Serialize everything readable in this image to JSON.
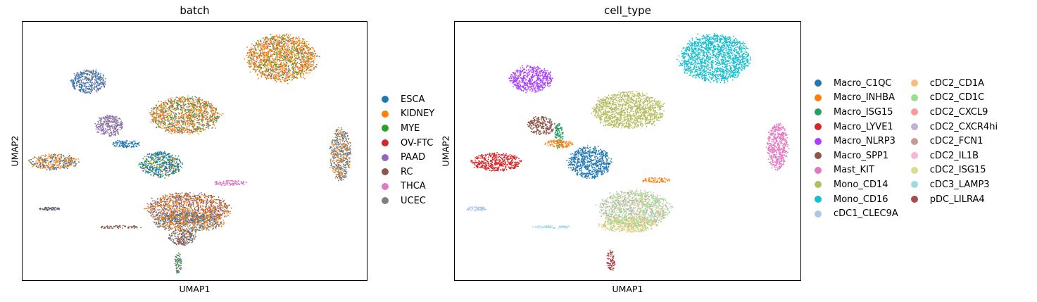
{
  "chart_data": [
    {
      "type": "scatter",
      "title": "batch",
      "xlabel": "UMAP1",
      "ylabel": "UMAP2",
      "grid": false,
      "legend_placement": "right",
      "series": [
        {
          "name": "ESCA",
          "color": "#1f77b4"
        },
        {
          "name": "KIDNEY",
          "color": "#ff7f0e"
        },
        {
          "name": "MYE",
          "color": "#2ca02c"
        },
        {
          "name": "OV-FTC",
          "color": "#d62728"
        },
        {
          "name": "PAAD",
          "color": "#9467bd"
        },
        {
          "name": "RC",
          "color": "#8c564b"
        },
        {
          "name": "THCA",
          "color": "#e377c2"
        },
        {
          "name": "UCEC",
          "color": "#7f7f7f"
        }
      ],
      "clusters": [
        {
          "x": 0.75,
          "y": 0.86,
          "rx": 0.1,
          "ry": 0.09,
          "mix": [
            [
              1,
              0.7
            ],
            [
              2,
              0.2
            ],
            [
              4,
              0.1
            ]
          ]
        },
        {
          "x": 0.19,
          "y": 0.77,
          "rx": 0.05,
          "ry": 0.045,
          "mix": [
            [
              0,
              0.5
            ],
            [
              7,
              0.3
            ],
            [
              4,
              0.2
            ]
          ]
        },
        {
          "x": 0.47,
          "y": 0.64,
          "rx": 0.1,
          "ry": 0.07,
          "mix": [
            [
              1,
              0.5
            ],
            [
              2,
              0.2
            ],
            [
              7,
              0.3
            ]
          ]
        },
        {
          "x": 0.25,
          "y": 0.6,
          "rx": 0.04,
          "ry": 0.04,
          "mix": [
            [
              4,
              0.6
            ],
            [
              7,
              0.4
            ]
          ]
        },
        {
          "x": 0.3,
          "y": 0.53,
          "rx": 0.04,
          "ry": 0.015,
          "mix": [
            [
              0,
              1
            ]
          ]
        },
        {
          "x": 0.09,
          "y": 0.46,
          "rx": 0.07,
          "ry": 0.03,
          "mix": [
            [
              1,
              0.6
            ],
            [
              0,
              0.4
            ]
          ]
        },
        {
          "x": 0.4,
          "y": 0.45,
          "rx": 0.06,
          "ry": 0.05,
          "mix": [
            [
              0,
              0.6
            ],
            [
              2,
              0.3
            ],
            [
              1,
              0.1
            ]
          ]
        },
        {
          "x": 0.92,
          "y": 0.49,
          "rx": 0.03,
          "ry": 0.1,
          "mix": [
            [
              7,
              0.5
            ],
            [
              1,
              0.3
            ],
            [
              0,
              0.2
            ]
          ]
        },
        {
          "x": 0.6,
          "y": 0.38,
          "rx": 0.05,
          "ry": 0.01,
          "mix": [
            [
              6,
              1
            ]
          ]
        },
        {
          "x": 0.48,
          "y": 0.28,
          "rx": 0.12,
          "ry": 0.06,
          "mix": [
            [
              1,
              0.4
            ],
            [
              5,
              0.3
            ],
            [
              7,
              0.2
            ],
            [
              4,
              0.1
            ]
          ]
        },
        {
          "x": 0.48,
          "y": 0.23,
          "rx": 0.1,
          "ry": 0.04,
          "mix": [
            [
              1,
              0.4
            ],
            [
              7,
              0.3
            ],
            [
              0,
              0.3
            ]
          ]
        },
        {
          "x": 0.08,
          "y": 0.28,
          "rx": 0.03,
          "ry": 0.006,
          "mix": [
            [
              5,
              0.6
            ],
            [
              0,
              0.4
            ]
          ]
        },
        {
          "x": 0.28,
          "y": 0.21,
          "rx": 0.06,
          "ry": 0.006,
          "mix": [
            [
              5,
              1
            ]
          ]
        },
        {
          "x": 0.46,
          "y": 0.17,
          "rx": 0.04,
          "ry": 0.03,
          "mix": [
            [
              5,
              0.5
            ],
            [
              7,
              0.5
            ]
          ]
        },
        {
          "x": 0.45,
          "y": 0.07,
          "rx": 0.01,
          "ry": 0.04,
          "mix": [
            [
              2,
              0.5
            ],
            [
              4,
              0.5
            ]
          ]
        }
      ]
    },
    {
      "type": "scatter",
      "title": "cell_type",
      "xlabel": "UMAP1",
      "ylabel": "UMAP2",
      "grid": false,
      "legend_placement": "right",
      "series": [
        {
          "name": "Macro_C1QC",
          "color": "#1f77b4"
        },
        {
          "name": "Macro_INHBA",
          "color": "#ff7f0e"
        },
        {
          "name": "Macro_ISG15",
          "color": "#279e68"
        },
        {
          "name": "Macro_LYVE1",
          "color": "#d62728"
        },
        {
          "name": "Macro_NLRP3",
          "color": "#aa40fc"
        },
        {
          "name": "Macro_SPP1",
          "color": "#8c564b"
        },
        {
          "name": "Mast_KIT",
          "color": "#e377c2"
        },
        {
          "name": "Mono_CD14",
          "color": "#b5bd61"
        },
        {
          "name": "Mono_CD16",
          "color": "#17becf"
        },
        {
          "name": "cDC1_CLEC9A",
          "color": "#aec7e8"
        },
        {
          "name": "cDC2_CD1A",
          "color": "#ffbb78"
        },
        {
          "name": "cDC2_CD1C",
          "color": "#98df8a"
        },
        {
          "name": "cDC2_CXCL9",
          "color": "#ff9896"
        },
        {
          "name": "cDC2_CXCR4hi",
          "color": "#c5b0d5"
        },
        {
          "name": "cDC2_FCN1",
          "color": "#c49c94"
        },
        {
          "name": "cDC2_IL1B",
          "color": "#f7b6d2"
        },
        {
          "name": "cDC2_ISG15",
          "color": "#dbdb8d"
        },
        {
          "name": "cDC3_LAMP3",
          "color": "#9edae5"
        },
        {
          "name": "pDC_LILRA4",
          "color": "#ad494a"
        }
      ],
      "clusters": [
        {
          "x": 0.75,
          "y": 0.86,
          "rx": 0.1,
          "ry": 0.09,
          "mix": [
            [
              8,
              1
            ]
          ]
        },
        {
          "x": 0.22,
          "y": 0.78,
          "rx": 0.06,
          "ry": 0.05,
          "mix": [
            [
              4,
              1
            ]
          ]
        },
        {
          "x": 0.5,
          "y": 0.66,
          "rx": 0.1,
          "ry": 0.07,
          "mix": [
            [
              7,
              1
            ]
          ]
        },
        {
          "x": 0.25,
          "y": 0.6,
          "rx": 0.04,
          "ry": 0.035,
          "mix": [
            [
              5,
              1
            ]
          ]
        },
        {
          "x": 0.3,
          "y": 0.56,
          "rx": 0.012,
          "ry": 0.05,
          "mix": [
            [
              2,
              1
            ]
          ]
        },
        {
          "x": 0.3,
          "y": 0.53,
          "rx": 0.04,
          "ry": 0.015,
          "mix": [
            [
              1,
              1
            ]
          ]
        },
        {
          "x": 0.12,
          "y": 0.46,
          "rx": 0.07,
          "ry": 0.035,
          "mix": [
            [
              3,
              1
            ]
          ]
        },
        {
          "x": 0.39,
          "y": 0.46,
          "rx": 0.06,
          "ry": 0.06,
          "mix": [
            [
              0,
              1
            ]
          ]
        },
        {
          "x": 0.93,
          "y": 0.52,
          "rx": 0.03,
          "ry": 0.09,
          "mix": [
            [
              6,
              1
            ]
          ]
        },
        {
          "x": 0.58,
          "y": 0.39,
          "rx": 0.04,
          "ry": 0.01,
          "mix": [
            [
              1,
              1
            ]
          ]
        },
        {
          "x": 0.52,
          "y": 0.28,
          "rx": 0.1,
          "ry": 0.07,
          "mix": [
            [
              11,
              0.45
            ],
            [
              13,
              0.2
            ],
            [
              16,
              0.15
            ],
            [
              15,
              0.1
            ],
            [
              14,
              0.1
            ]
          ]
        },
        {
          "x": 0.5,
          "y": 0.22,
          "rx": 0.08,
          "ry": 0.03,
          "mix": [
            [
              16,
              0.3
            ],
            [
              10,
              0.3
            ],
            [
              11,
              0.4
            ]
          ]
        },
        {
          "x": 0.06,
          "y": 0.28,
          "rx": 0.03,
          "ry": 0.008,
          "mix": [
            [
              9,
              1
            ]
          ]
        },
        {
          "x": 0.28,
          "y": 0.21,
          "rx": 0.06,
          "ry": 0.006,
          "mix": [
            [
              17,
              1
            ]
          ]
        },
        {
          "x": 0.45,
          "y": 0.08,
          "rx": 0.012,
          "ry": 0.04,
          "mix": [
            [
              18,
              1
            ]
          ]
        }
      ]
    }
  ]
}
